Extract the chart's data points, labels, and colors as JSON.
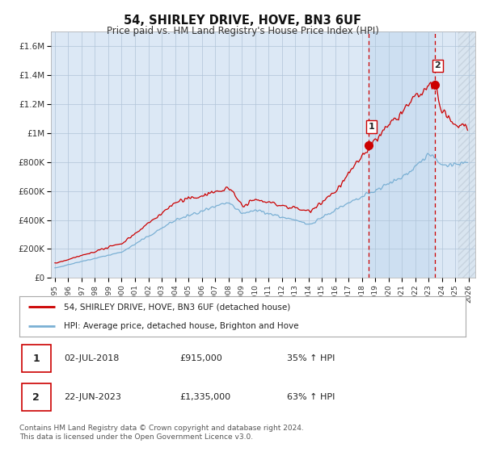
{
  "title": "54, SHIRLEY DRIVE, HOVE, BN3 6UF",
  "subtitle": "Price paid vs. HM Land Registry's House Price Index (HPI)",
  "sale_color": "#cc0000",
  "hpi_color": "#7ab0d4",
  "vline1_x": 2018.5,
  "vline2_x": 2023.47,
  "marker1_x": 2018.5,
  "marker1_y": 915000,
  "marker2_x": 2023.47,
  "marker2_y": 1335000,
  "ylim": [
    0,
    1700000
  ],
  "yticks": [
    0,
    200000,
    400000,
    600000,
    800000,
    1000000,
    1200000,
    1400000,
    1600000
  ],
  "ytick_labels": [
    "£0",
    "£200K",
    "£400K",
    "£600K",
    "£800K",
    "£1M",
    "£1.2M",
    "£1.4M",
    "£1.6M"
  ],
  "xlim_left": 1994.7,
  "xlim_right": 2026.5,
  "legend_sale_label": "54, SHIRLEY DRIVE, HOVE, BN3 6UF (detached house)",
  "legend_hpi_label": "HPI: Average price, detached house, Brighton and Hove",
  "table_rows": [
    {
      "num": "1",
      "date": "02-JUL-2018",
      "price": "£915,000",
      "hpi": "35% ↑ HPI"
    },
    {
      "num": "2",
      "date": "22-JUN-2023",
      "price": "£1,335,000",
      "hpi": "63% ↑ HPI"
    }
  ],
  "footnote": "Contains HM Land Registry data © Crown copyright and database right 2024.\nThis data is licensed under the Open Government Licence v3.0.",
  "background_color": "#ffffff",
  "plot_bg_color": "#dce8f5",
  "grid_color": "#b0c4d8",
  "shade_color": "#c8ddf0",
  "hatch_color": "#c0ccd8"
}
